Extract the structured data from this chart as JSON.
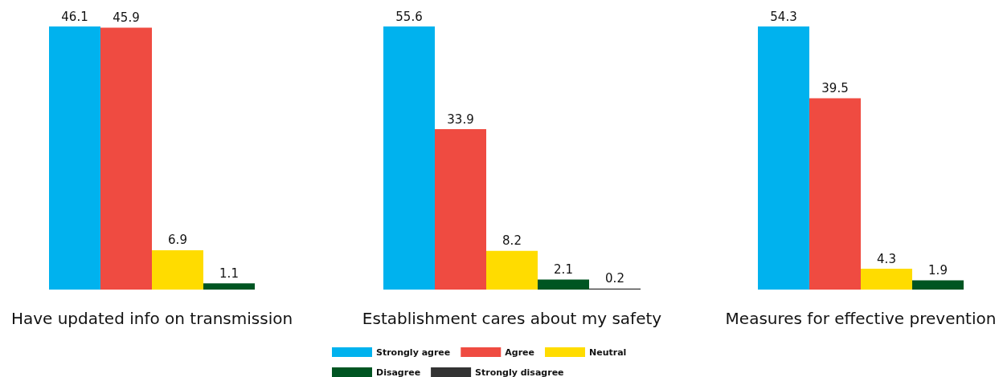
{
  "chart_data": [
    {
      "type": "bar",
      "xlabel": "Have updated info on transmission",
      "categories": [
        null
      ],
      "data_labels": true,
      "legend": false,
      "series": [
        {
          "color": "#00b2ee",
          "values": [
            46.1
          ]
        },
        {
          "color": "#ef4b41",
          "values": [
            45.9
          ]
        },
        {
          "color": "#ffdc00",
          "values": [
            6.9
          ]
        },
        {
          "color": "#005522",
          "values": [
            1.1
          ]
        }
      ]
    },
    {
      "type": "bar",
      "xlabel": "Establishment cares about my safety",
      "categories": [
        null
      ],
      "data_labels": true,
      "legend": "bottom",
      "series": [
        {
          "name": "Strongly agree",
          "color": "#00b2ee",
          "values": [
            55.6
          ]
        },
        {
          "name": "Agree",
          "color": "#ef4b41",
          "values": [
            33.9
          ]
        },
        {
          "name": "Neutral",
          "color": "#ffdc00",
          "values": [
            8.2
          ]
        },
        {
          "name": "Disagree",
          "color": "#005522",
          "values": [
            2.1
          ]
        },
        {
          "name": "Strongly disagree",
          "color": "#333333",
          "values": [
            0.2
          ]
        }
      ]
    },
    {
      "type": "bar",
      "xlabel": "Measures for effective prevention",
      "categories": [
        null
      ],
      "data_labels": true,
      "legend": false,
      "series": [
        {
          "color": "#00b2ee",
          "values": [
            54.3
          ]
        },
        {
          "color": "#ef4b41",
          "values": [
            39.5
          ]
        },
        {
          "color": "#ffdc00",
          "values": [
            4.3
          ]
        },
        {
          "color": "#005522",
          "values": [
            1.9
          ]
        }
      ]
    }
  ]
}
